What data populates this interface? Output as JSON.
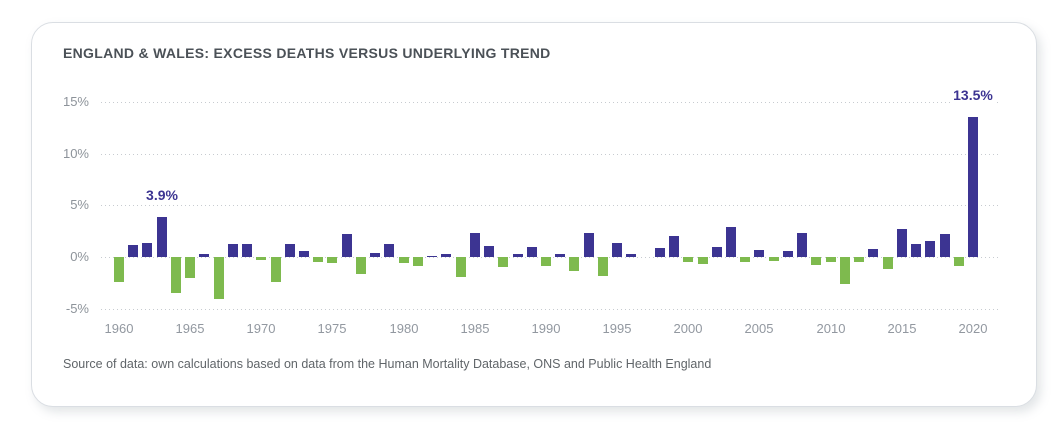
{
  "card": {
    "title": "ENGLAND & WALES: EXCESS DEATHS VERSUS UNDERLYING TREND",
    "source_note": "Source of data: own calculations based on data from the Human Mortality Database, ONS and Public Health England"
  },
  "colors": {
    "positive_bar": "#3c3492",
    "negative_bar": "#7eba4e",
    "title_text": "#4b5157",
    "axis_text": "#8d939a",
    "source_text": "#606569",
    "gridline": "#c7cbd0",
    "annotation_text": "#3c3492",
    "card_border": "#dadee3",
    "background": "#ffffff"
  },
  "chart_data": {
    "type": "bar",
    "title": "ENGLAND & WALES: EXCESS DEATHS VERSUS UNDERLYING TREND",
    "xlabel": "",
    "ylabel": "",
    "unit": "%",
    "grid": "dotted-horizontal",
    "legend": "none",
    "ylim": [
      -6.5,
      16.5
    ],
    "y_ticks": [
      {
        "value": 15,
        "label": "15%"
      },
      {
        "value": 10,
        "label": "10%"
      },
      {
        "value": 5,
        "label": "5%"
      },
      {
        "value": 0,
        "label": "0%"
      },
      {
        "value": -5,
        "label": "-5%"
      }
    ],
    "x_tick_years": [
      1960,
      1965,
      1970,
      1975,
      1980,
      1985,
      1990,
      1995,
      2000,
      2005,
      2010,
      2015,
      2020
    ],
    "years": [
      1960,
      1961,
      1962,
      1963,
      1964,
      1965,
      1966,
      1967,
      1968,
      1969,
      1970,
      1971,
      1972,
      1973,
      1974,
      1975,
      1976,
      1977,
      1978,
      1979,
      1980,
      1981,
      1982,
      1983,
      1984,
      1985,
      1986,
      1987,
      1988,
      1989,
      1990,
      1991,
      1992,
      1993,
      1994,
      1995,
      1996,
      1997,
      1998,
      1999,
      2000,
      2001,
      2002,
      2003,
      2004,
      2005,
      2006,
      2007,
      2008,
      2009,
      2010,
      2011,
      2012,
      2013,
      2014,
      2015,
      2016,
      2017,
      2018,
      2019,
      2020
    ],
    "values": [
      -2.4,
      1.2,
      1.4,
      3.9,
      -3.5,
      -2.0,
      0.3,
      -4.1,
      1.3,
      1.3,
      -0.3,
      -2.4,
      1.3,
      0.6,
      -0.45,
      -0.6,
      2.2,
      -1.6,
      0.35,
      1.3,
      -0.55,
      -0.85,
      0.05,
      0.25,
      -1.9,
      2.3,
      1.1,
      -1.0,
      0.25,
      1.0,
      -0.9,
      0.3,
      -1.4,
      2.3,
      -1.8,
      1.4,
      0.3,
      0.0,
      0.9,
      2.0,
      -0.5,
      -0.7,
      1.0,
      2.9,
      -0.5,
      0.7,
      -0.4,
      0.6,
      2.3,
      -0.8,
      -0.5,
      -2.6,
      -0.5,
      0.75,
      -1.2,
      2.7,
      1.3,
      1.5,
      2.2,
      -0.9,
      13.5
    ],
    "series_semantics": {
      "positive": "excess deaths above underlying trend (purple)",
      "negative": "deaths below underlying trend (green)"
    },
    "annotations": [
      {
        "year": 1963,
        "label": "3.9%"
      },
      {
        "year": 2020,
        "label": "13.5%"
      }
    ]
  }
}
